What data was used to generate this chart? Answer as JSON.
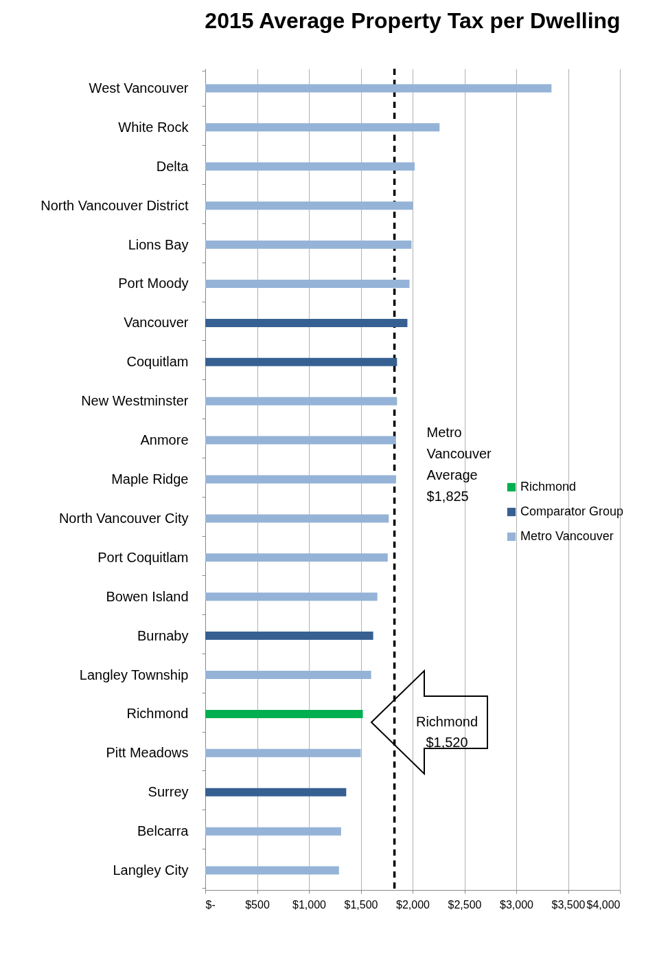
{
  "chart_data": {
    "type": "bar",
    "orientation": "horizontal",
    "title": "2015 Average Property Tax per Dwelling",
    "categories": [
      "West Vancouver",
      "White Rock",
      "Delta",
      "North Vancouver District",
      "Lions Bay",
      "Port Moody",
      "Vancouver",
      "Coquitlam",
      "New Westminster",
      "Anmore",
      "Maple Ridge",
      "North Vancouver City",
      "Port Coquitlam",
      "Bowen Island",
      "Burnaby",
      "Langley Township",
      "Richmond",
      "Pitt Meadows",
      "Surrey",
      "Belcarra",
      "Langley City"
    ],
    "series": [
      {
        "name": "Richmond",
        "color": "#00b050",
        "values": [
          null,
          null,
          null,
          null,
          null,
          null,
          null,
          null,
          null,
          null,
          null,
          null,
          null,
          null,
          null,
          null,
          1520,
          null,
          null,
          null,
          null
        ]
      },
      {
        "name": "Comparator Group",
        "color": "#366092",
        "values": [
          null,
          null,
          null,
          null,
          null,
          null,
          1950,
          1850,
          null,
          null,
          null,
          null,
          null,
          null,
          1620,
          null,
          null,
          null,
          1360,
          null,
          null
        ]
      },
      {
        "name": "Metro Vancouver",
        "color": "#95b3d7",
        "values": [
          3340,
          2260,
          2020,
          2000,
          1990,
          1970,
          null,
          null,
          1850,
          1840,
          1840,
          1770,
          1760,
          1660,
          null,
          1600,
          null,
          1500,
          null,
          1310,
          1290
        ]
      }
    ],
    "xlim": [
      0,
      4000
    ],
    "xticks": [
      {
        "value": 0,
        "label": "$-"
      },
      {
        "value": 500,
        "label": "$500"
      },
      {
        "value": 1000,
        "label": "$1,000"
      },
      {
        "value": 1500,
        "label": "$1,500"
      },
      {
        "value": 2000,
        "label": "$2,000"
      },
      {
        "value": 2500,
        "label": "$2,500"
      },
      {
        "value": 3000,
        "label": "$3,000"
      },
      {
        "value": 3500,
        "label": "$3,500"
      },
      {
        "value": 4000,
        "label": "$4,000"
      }
    ],
    "grid": "x",
    "legend": "right",
    "ref_lines": [
      {
        "axis": "x",
        "value": 1825,
        "label": "Metro Vancouver Average $1,825",
        "color": "#000000",
        "line_style": "dashed"
      }
    ],
    "annotations": [
      "Richmond $1,520"
    ]
  }
}
